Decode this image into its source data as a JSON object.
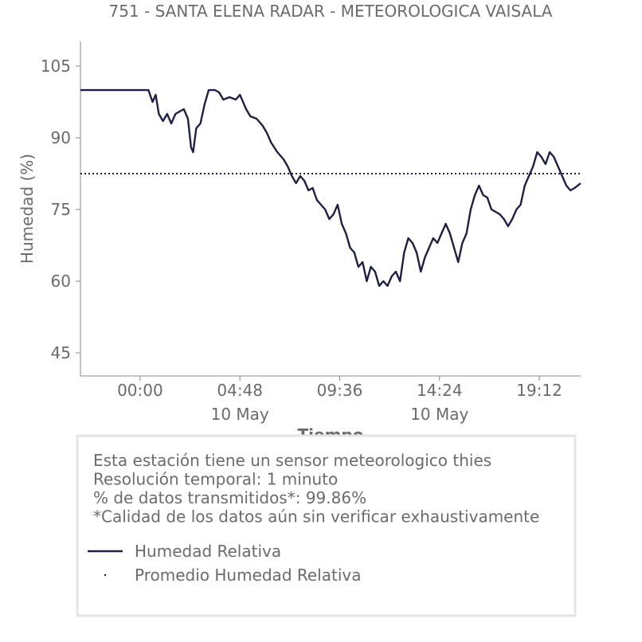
{
  "chart_data": {
    "type": "line",
    "title": "751 - SANTA ELENA RADAR - METEOROLOGICA VAISALA",
    "xlabel": "Tiempo",
    "ylabel": "Humedad (%)",
    "x": [
      -2.87,
      -2,
      -1,
      0,
      0.4,
      0.6,
      0.75,
      0.9,
      1.1,
      1.3,
      1.5,
      1.7,
      1.9,
      2.1,
      2.3,
      2.45,
      2.55,
      2.7,
      2.9,
      3.1,
      3.3,
      3.6,
      3.8,
      4.0,
      4.3,
      4.6,
      4.8,
      5.1,
      5.3,
      5.6,
      5.9,
      6.1,
      6.3,
      6.6,
      6.9,
      7.1,
      7.3,
      7.5,
      7.7,
      7.9,
      8.1,
      8.3,
      8.5,
      8.7,
      8.9,
      9.1,
      9.3,
      9.5,
      9.7,
      9.9,
      10.1,
      10.3,
      10.5,
      10.7,
      10.9,
      11.1,
      11.3,
      11.5,
      11.7,
      11.9,
      12.1,
      12.3,
      12.5,
      12.7,
      12.9,
      13.1,
      13.3,
      13.5,
      13.7,
      13.9,
      14.1,
      14.3,
      14.5,
      14.7,
      14.9,
      15.1,
      15.3,
      15.5,
      15.7,
      15.9,
      16.1,
      16.3,
      16.5,
      16.7,
      16.9,
      17.1,
      17.3,
      17.5,
      17.7,
      17.9,
      18.1,
      18.3,
      18.5,
      18.7,
      18.9,
      19.1,
      19.3,
      19.5,
      19.7,
      19.9,
      20.1,
      20.3,
      20.5,
      20.7,
      20.9,
      21.19
    ],
    "series": [
      {
        "name": "Humedad Relativa",
        "color": "#1f2044",
        "values": [
          100,
          100,
          100,
          100,
          100,
          97.5,
          99,
          95,
          93.5,
          95,
          93,
          95,
          95.5,
          96,
          94,
          88,
          87,
          92,
          93,
          97,
          100,
          100,
          99.5,
          98,
          98.5,
          98,
          99,
          96,
          94.5,
          94,
          92.5,
          91,
          89,
          87,
          85.5,
          84,
          82,
          80.5,
          82,
          81,
          79,
          79.5,
          77,
          76,
          75,
          73,
          74,
          76,
          72,
          70,
          67,
          66,
          63,
          64,
          60,
          63,
          62,
          59,
          60,
          59,
          61,
          62,
          60,
          66,
          69,
          68,
          66,
          62,
          65,
          67,
          69,
          68,
          70,
          72,
          70,
          67,
          64,
          68,
          70,
          75,
          78,
          80,
          78,
          77.5,
          75,
          74.5,
          74,
          73,
          71.5,
          73,
          75,
          76,
          80,
          82,
          84,
          87,
          86,
          84.5,
          87,
          86,
          84,
          82,
          80,
          79,
          79.5,
          80.5
        ]
      }
    ],
    "reference_lines": [
      {
        "name": "Promedio Humedad Relativa",
        "color": "#1f2044",
        "value": 82.5,
        "style": "dotted"
      }
    ],
    "xlim": [
      -2.87,
      21.19
    ],
    "xticks": [
      {
        "value": 0,
        "label": "00:00"
      },
      {
        "value": 4.8,
        "label": "04:48\n10 May"
      },
      {
        "value": 9.6,
        "label": "09:36"
      },
      {
        "value": 14.4,
        "label": "14:24\n10 May"
      },
      {
        "value": 19.2,
        "label": "19:12"
      }
    ],
    "ylim": [
      40.17,
      110.17
    ],
    "yticks": [
      45,
      60,
      75,
      90,
      105
    ],
    "grid": false,
    "notes": [
      "Esta estación tiene un sensor meteorologico thies",
      "Resolución temporal: 1 minuto",
      "% de datos transmitidos*: 99.86%",
      "*Calidad de los datos aún sin verificar exhaustivamente"
    ]
  }
}
